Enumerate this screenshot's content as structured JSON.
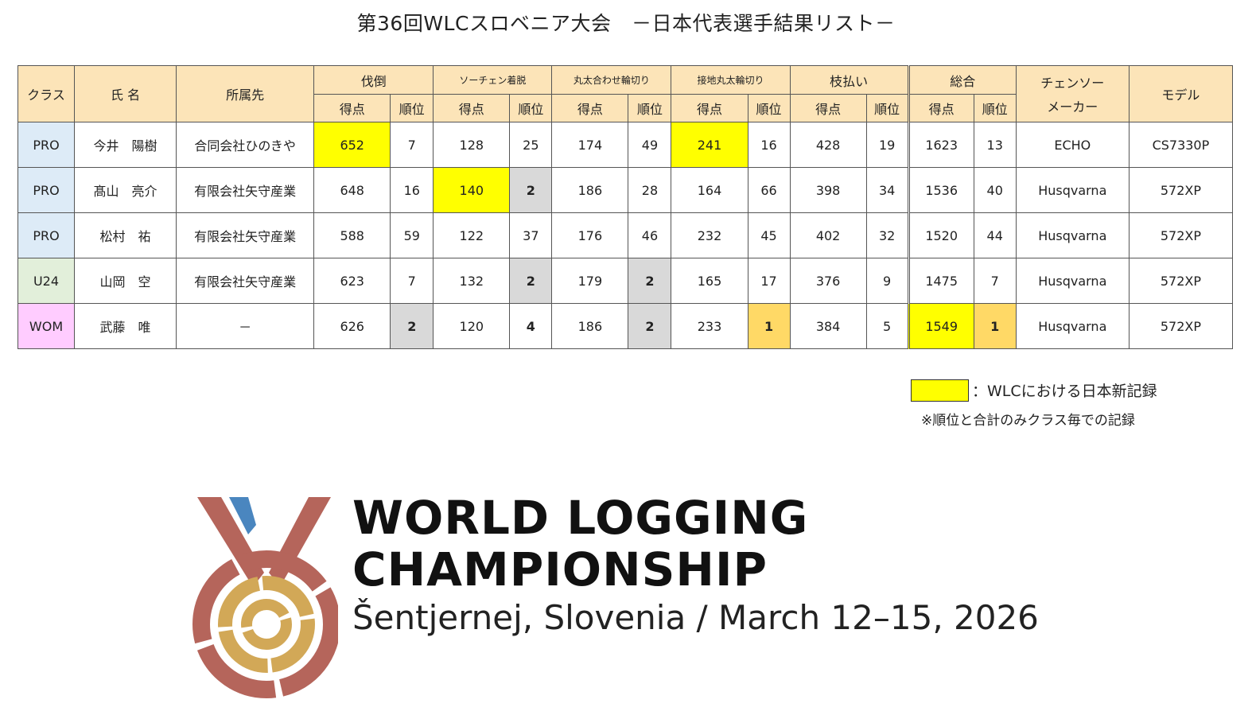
{
  "title": "第36回WLCスロベニア大会　－日本代表選手結果リスト－",
  "colors": {
    "header": "#FCE4B8",
    "PRO": "#DDEBF7",
    "U24": "#E2EFDA",
    "WOM": "#FFCCFF",
    "record": "#FFFF00",
    "rank_gray": "#D9D9D9",
    "rank_gold": "#FFD966"
  },
  "headers": {
    "class": "クラス",
    "name": "氏 名",
    "affiliation": "所属先",
    "events": [
      "伐倒",
      "ソーチェン着脱",
      "丸太合わせ輪切り",
      "接地丸太輪切り",
      "枝払い",
      "総合"
    ],
    "score": "得点",
    "rank": "順位",
    "maker_line1": "チェンソー",
    "maker_line2": "メーカー",
    "model": "モデル"
  },
  "rows": [
    {
      "class": "PRO",
      "name": "今井　陽樹",
      "affiliation": "合同会社ひのきや",
      "cells": [
        {
          "v": "652",
          "hl": "record"
        },
        {
          "v": "7"
        },
        {
          "v": "128"
        },
        {
          "v": "25"
        },
        {
          "v": "174"
        },
        {
          "v": "49"
        },
        {
          "v": "241",
          "hl": "record"
        },
        {
          "v": "16"
        },
        {
          "v": "428"
        },
        {
          "v": "19"
        },
        {
          "v": "1623"
        },
        {
          "v": "13"
        }
      ],
      "maker": "ECHO",
      "model": "CS7330P"
    },
    {
      "class": "PRO",
      "name": "髙山　亮介",
      "affiliation": "有限会社矢守産業",
      "cells": [
        {
          "v": "648"
        },
        {
          "v": "16"
        },
        {
          "v": "140",
          "hl": "record"
        },
        {
          "v": "2",
          "hl": "rank_gray",
          "bold": true
        },
        {
          "v": "186"
        },
        {
          "v": "28"
        },
        {
          "v": "164"
        },
        {
          "v": "66"
        },
        {
          "v": "398"
        },
        {
          "v": "34"
        },
        {
          "v": "1536"
        },
        {
          "v": "40"
        }
      ],
      "maker": "Husqvarna",
      "model": "572XP"
    },
    {
      "class": "PRO",
      "name": "松村　祐",
      "affiliation": "有限会社矢守産業",
      "cells": [
        {
          "v": "588"
        },
        {
          "v": "59"
        },
        {
          "v": "122"
        },
        {
          "v": "37"
        },
        {
          "v": "176"
        },
        {
          "v": "46"
        },
        {
          "v": "232"
        },
        {
          "v": "45"
        },
        {
          "v": "402"
        },
        {
          "v": "32"
        },
        {
          "v": "1520"
        },
        {
          "v": "44"
        }
      ],
      "maker": "Husqvarna",
      "model": "572XP"
    },
    {
      "class": "U24",
      "name": "山岡　空",
      "affiliation": "有限会社矢守産業",
      "cells": [
        {
          "v": "623"
        },
        {
          "v": "7"
        },
        {
          "v": "132"
        },
        {
          "v": "2",
          "hl": "rank_gray",
          "bold": true
        },
        {
          "v": "179"
        },
        {
          "v": "2",
          "hl": "rank_gray",
          "bold": true
        },
        {
          "v": "165"
        },
        {
          "v": "17"
        },
        {
          "v": "376"
        },
        {
          "v": "9"
        },
        {
          "v": "1475"
        },
        {
          "v": "7"
        }
      ],
      "maker": "Husqvarna",
      "model": "572XP"
    },
    {
      "class": "WOM",
      "name": "武藤　唯",
      "affiliation": "－",
      "cells": [
        {
          "v": "626"
        },
        {
          "v": "2",
          "hl": "rank_gray",
          "bold": true
        },
        {
          "v": "120"
        },
        {
          "v": "4",
          "bold": true
        },
        {
          "v": "186"
        },
        {
          "v": "2",
          "hl": "rank_gray",
          "bold": true
        },
        {
          "v": "233"
        },
        {
          "v": "1",
          "hl": "rank_gold",
          "bold": true
        },
        {
          "v": "384"
        },
        {
          "v": "5"
        },
        {
          "v": "1549",
          "hl": "record"
        },
        {
          "v": "1",
          "hl": "rank_gold",
          "bold": true
        }
      ],
      "maker": "Husqvarna",
      "model": "572XP"
    }
  ],
  "legend": {
    "text": "：WLCにおける日本新記録",
    "note": "※順位と合計のみクラス毎での記録"
  },
  "logo": {
    "line1": "WORLD LOGGING",
    "line2": "CHAMPIONSHIP",
    "line3": "Šentjernej, Slovenia / March 12–15, 2026"
  }
}
